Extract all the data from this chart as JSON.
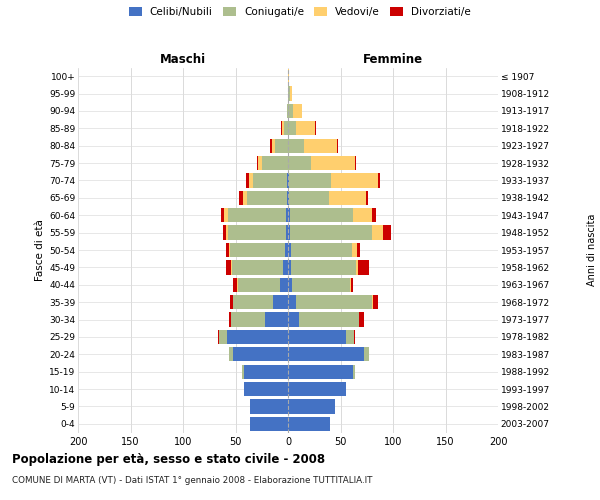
{
  "age_groups": [
    "100+",
    "95-99",
    "90-94",
    "85-89",
    "80-84",
    "75-79",
    "70-74",
    "65-69",
    "60-64",
    "55-59",
    "50-54",
    "45-49",
    "40-44",
    "35-39",
    "30-34",
    "25-29",
    "20-24",
    "15-19",
    "10-14",
    "5-9",
    "0-4"
  ],
  "birth_years": [
    "≤ 1907",
    "1908-1912",
    "1913-1917",
    "1918-1922",
    "1923-1927",
    "1928-1932",
    "1933-1937",
    "1938-1942",
    "1943-1947",
    "1948-1952",
    "1953-1957",
    "1958-1962",
    "1963-1967",
    "1968-1972",
    "1973-1977",
    "1978-1982",
    "1983-1987",
    "1988-1992",
    "1993-1997",
    "1998-2002",
    "2003-2007"
  ],
  "males_celibi": [
    0,
    0,
    0,
    0,
    0,
    0,
    1,
    1,
    2,
    2,
    3,
    5,
    8,
    14,
    22,
    58,
    52,
    42,
    42,
    36,
    36
  ],
  "males_coniugati": [
    0,
    0,
    1,
    4,
    12,
    25,
    32,
    38,
    55,
    55,
    52,
    48,
    40,
    38,
    32,
    8,
    4,
    2,
    0,
    0,
    0
  ],
  "males_vedovi": [
    0,
    0,
    0,
    2,
    3,
    4,
    4,
    4,
    4,
    2,
    1,
    1,
    1,
    0,
    0,
    0,
    0,
    0,
    0,
    0,
    0
  ],
  "males_divorziati": [
    0,
    0,
    0,
    1,
    2,
    1,
    3,
    4,
    3,
    3,
    3,
    5,
    3,
    3,
    2,
    1,
    0,
    0,
    0,
    0,
    0
  ],
  "females_nubili": [
    0,
    0,
    0,
    0,
    0,
    0,
    1,
    1,
    2,
    2,
    3,
    3,
    4,
    8,
    10,
    55,
    72,
    62,
    55,
    45,
    40
  ],
  "females_coniugate": [
    0,
    2,
    5,
    8,
    15,
    22,
    40,
    38,
    60,
    78,
    58,
    62,
    55,
    72,
    58,
    8,
    5,
    2,
    0,
    0,
    0
  ],
  "females_vedove": [
    1,
    2,
    8,
    18,
    32,
    42,
    45,
    35,
    18,
    10,
    5,
    2,
    1,
    1,
    0,
    0,
    0,
    0,
    0,
    0,
    0
  ],
  "females_divorziate": [
    0,
    0,
    0,
    1,
    1,
    1,
    2,
    2,
    4,
    8,
    3,
    10,
    2,
    5,
    4,
    1,
    0,
    0,
    0,
    0,
    0
  ],
  "color_celibi": "#4472C4",
  "color_coniugati": "#ADBE8E",
  "color_vedovi": "#FFCF6E",
  "color_divorziati": "#CC0000",
  "xlim": 200,
  "title": "Popolazione per età, sesso e stato civile - 2008",
  "subtitle": "COMUNE DI MARTA (VT) - Dati ISTAT 1° gennaio 2008 - Elaborazione TUTTITALIA.IT",
  "legend_labels": [
    "Celibi/Nubili",
    "Coniugati/e",
    "Vedovi/e",
    "Divorziati/e"
  ]
}
